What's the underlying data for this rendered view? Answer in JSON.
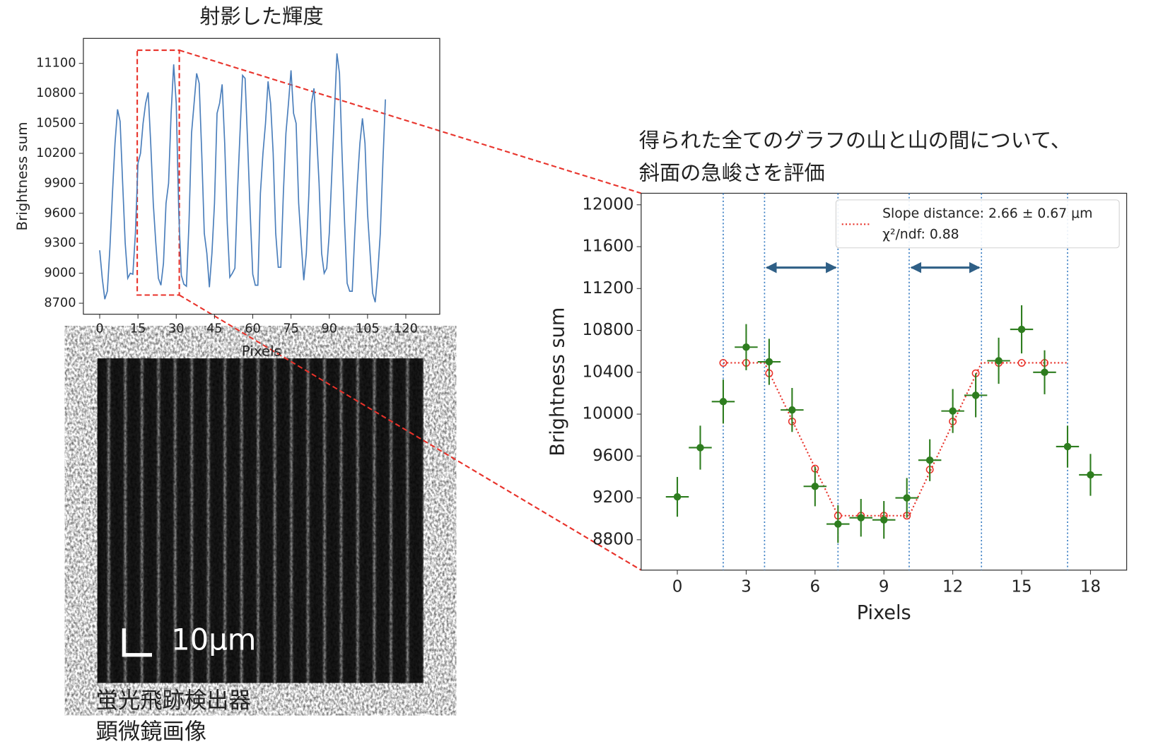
{
  "chart_data": [
    {
      "type": "line",
      "title": "射影した輝度",
      "xlabel": "Pixels",
      "ylabel": "Brightness sum",
      "color": "#4a7ebb",
      "x": [
        0,
        1,
        2,
        3,
        4,
        5,
        6,
        7,
        8,
        9,
        10,
        11,
        12,
        13,
        14,
        15,
        16,
        17,
        18,
        19,
        20,
        21,
        22,
        23,
        24,
        25,
        26,
        27,
        28,
        29,
        30,
        31,
        32,
        33,
        34,
        35,
        36,
        37,
        38,
        39,
        40,
        41,
        42,
        43,
        44,
        45,
        46,
        47,
        48,
        49,
        50,
        51,
        52,
        53,
        54,
        55,
        56,
        57,
        58,
        59,
        60,
        61,
        62,
        63,
        64,
        65,
        66,
        67,
        68,
        69,
        70,
        71,
        72,
        73,
        74,
        75,
        76,
        77,
        78,
        79,
        80,
        81,
        82,
        83,
        84,
        85,
        86,
        87,
        88,
        89,
        90,
        91,
        92,
        93,
        94,
        95,
        96,
        97,
        98,
        99,
        100,
        101,
        102,
        103,
        104,
        105,
        106,
        107,
        108,
        109,
        110,
        111,
        112
      ],
      "values": [
        9230,
        8950,
        8740,
        8820,
        9250,
        9800,
        10300,
        10640,
        10520,
        9900,
        9300,
        8950,
        9000,
        8990,
        9400,
        10100,
        10200,
        10500,
        10700,
        10810,
        10300,
        9700,
        9300,
        8950,
        8880,
        9100,
        9700,
        9900,
        10600,
        11090,
        10700,
        9600,
        8980,
        8890,
        8870,
        9500,
        10400,
        10700,
        11000,
        10900,
        10200,
        9400,
        9200,
        8860,
        9200,
        9700,
        10600,
        10700,
        10890,
        10300,
        9500,
        8960,
        9000,
        9050,
        9800,
        10400,
        10980,
        10950,
        10300,
        9600,
        8990,
        8880,
        8880,
        9800,
        10200,
        10500,
        10920,
        10700,
        10200,
        9400,
        9060,
        9060,
        9800,
        10400,
        10700,
        11030,
        10600,
        10500,
        9700,
        9300,
        8930,
        9200,
        9800,
        10700,
        10850,
        10400,
        9900,
        9200,
        9000,
        9050,
        9400,
        10000,
        10600,
        11200,
        11000,
        10200,
        9500,
        8900,
        8820,
        8820,
        9400,
        9900,
        10300,
        10550,
        10300,
        9600,
        9200,
        8800,
        8710,
        9000,
        9400,
        10100,
        10740
      ],
      "xlim": [
        -6.4,
        133.3
      ],
      "xticks": [
        0,
        15,
        30,
        45,
        60,
        75,
        90,
        105,
        120
      ],
      "ylim": [
        8590,
        11350
      ],
      "yticks": [
        8700,
        9000,
        9300,
        9600,
        9900,
        10200,
        10500,
        10800,
        11100
      ]
    },
    {
      "type": "scatter",
      "annotation": [
        "得られた全てのグラフの山と山の間について、",
        "斜面の急峻さを評価"
      ],
      "xlabel": "Pixels",
      "ylabel": "Brightness sum",
      "color": "#2e7d1f",
      "x": [
        0,
        1,
        2,
        3,
        4,
        5,
        6,
        7,
        8,
        9,
        10,
        11,
        12,
        13,
        14,
        15,
        16,
        17,
        18
      ],
      "values": [
        9210,
        9680,
        10120,
        10640,
        10500,
        10040,
        9310,
        8950,
        9010,
        8990,
        9200,
        9560,
        10030,
        10180,
        10510,
        10810,
        10400,
        9690,
        9420
      ],
      "yerr": [
        190,
        210,
        210,
        220,
        220,
        210,
        190,
        180,
        180,
        180,
        190,
        200,
        210,
        210,
        220,
        230,
        210,
        200,
        200
      ],
      "xerr": [
        0.5,
        0.5,
        0.5,
        0.5,
        0.5,
        0.5,
        0.5,
        0.5,
        0.5,
        0.5,
        0.5,
        0.5,
        0.5,
        0.5,
        0.5,
        0.5,
        0.5,
        0.5,
        0.5
      ],
      "fit_points": {
        "color": "#e8322a",
        "x": [
          2,
          3,
          4,
          5,
          6,
          7,
          8,
          9,
          10,
          11,
          12,
          13,
          14,
          15,
          16
        ],
        "values": [
          10490,
          10490,
          10390,
          9930,
          9480,
          9030,
          9030,
          9030,
          9030,
          9470,
          9930,
          10390,
          10490,
          10490,
          10490
        ]
      },
      "fit_line": {
        "name": "Slope distance: 2.66 ± 0.67 μm",
        "color": "#e8322a",
        "x": [
          2,
          3.8,
          7,
          10.1,
          13.25,
          17
        ],
        "values": [
          10490,
          10490,
          9030,
          9030,
          10490,
          10490
        ]
      },
      "fit_note": "χ²/ndf: 0.88",
      "boundaries": {
        "color": "#3b7fc4",
        "x": [
          2,
          3.8,
          7,
          10.1,
          13.25,
          17
        ]
      },
      "arrows": {
        "color": "#2f5f86",
        "y": 11400,
        "spans": [
          [
            3.8,
            7
          ],
          [
            10.1,
            13.25
          ]
        ]
      },
      "xlim": [
        -1.575,
        19.575
      ],
      "xticks": [
        0,
        3,
        6,
        9,
        12,
        15,
        18
      ],
      "ylim": [
        8510,
        12110
      ],
      "yticks": [
        8800,
        9200,
        9600,
        10000,
        10400,
        10800,
        11200,
        11600,
        12000
      ]
    }
  ],
  "image": {
    "scale_label": "10μm",
    "caption": [
      "蛍光飛跡検出器",
      "顕微鏡画像"
    ]
  }
}
